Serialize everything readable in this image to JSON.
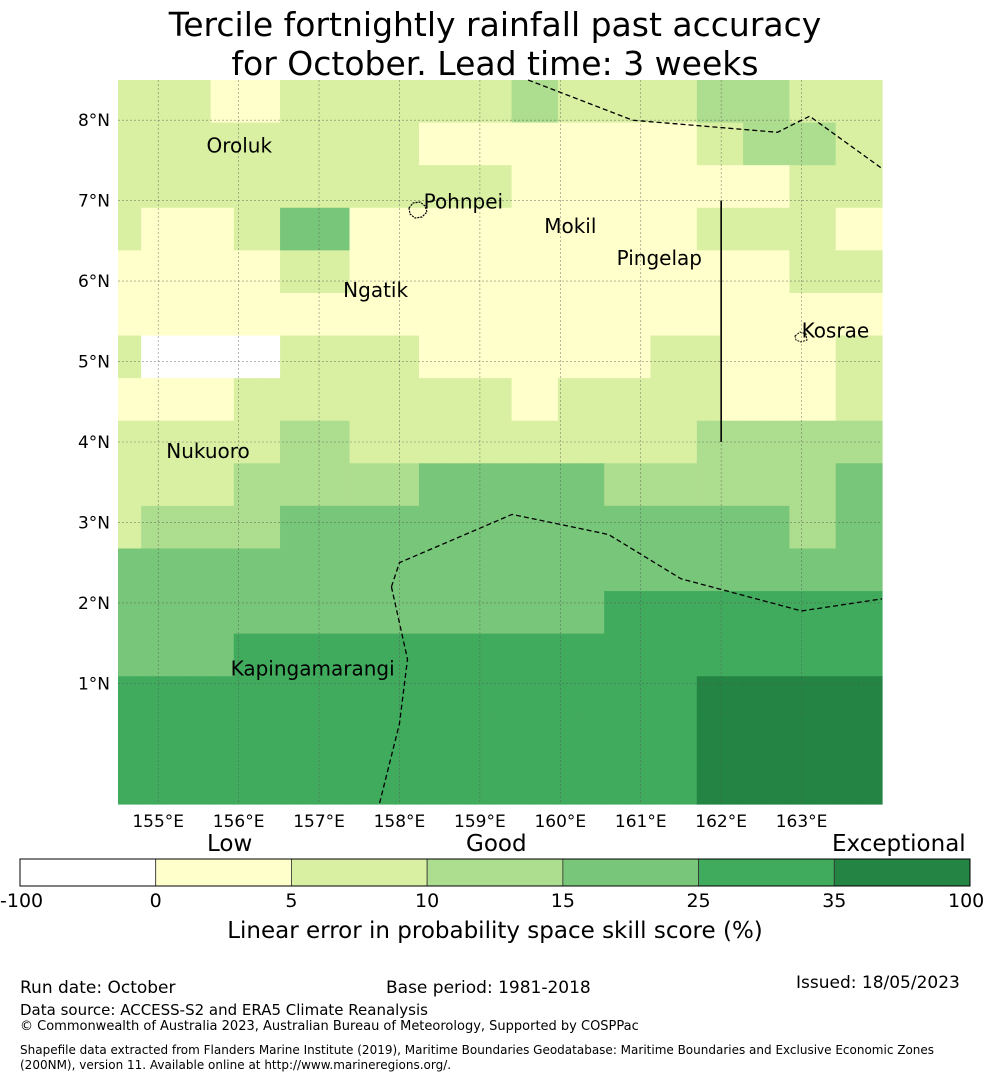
{
  "title": {
    "line1": "Tercile fortnightly rainfall past accuracy",
    "line2": "for October. Lead time: 3 weeks"
  },
  "map": {
    "lon_range": [
      154.5,
      164.0
    ],
    "lat_range": [
      -0.5,
      8.5
    ],
    "lon_ticks": [
      155,
      156,
      157,
      158,
      159,
      160,
      161,
      162,
      163
    ],
    "lon_tick_labels": [
      "155°E",
      "156°E",
      "157°E",
      "158°E",
      "159°E",
      "160°E",
      "161°E",
      "162°E",
      "163°E"
    ],
    "lat_ticks": [
      1,
      2,
      3,
      4,
      5,
      6,
      7,
      8
    ],
    "lat_tick_labels": [
      "1°N",
      "2°N",
      "3°N",
      "4°N",
      "5°N",
      "6°N",
      "7°N",
      "8°N"
    ],
    "cell_size_deg": [
      0.833,
      0.556
    ],
    "skill_grid_rows_north_to_south": [
      [
        5,
        5,
        5,
        5,
        0,
        0,
        0,
        5,
        5,
        5,
        5,
        5,
        5,
        5,
        5,
        5,
        5,
        10,
        10,
        5,
        5,
        5,
        5,
        5,
        5,
        10,
        10,
        10,
        10,
        5,
        5,
        5,
        5
      ],
      [
        5,
        5,
        5,
        5,
        5,
        5,
        5,
        5,
        5,
        5,
        5,
        5,
        5,
        0,
        0,
        0,
        0,
        0,
        0,
        0,
        0,
        0,
        0,
        0,
        0,
        5,
        5,
        10,
        10,
        10,
        10,
        5,
        5
      ],
      [
        5,
        5,
        5,
        5,
        5,
        5,
        5,
        5,
        5,
        5,
        5,
        5,
        5,
        5,
        5,
        5,
        5,
        0,
        0,
        0,
        0,
        0,
        0,
        0,
        0,
        0,
        0,
        0,
        0,
        5,
        5,
        5,
        5
      ],
      [
        5,
        0,
        0,
        0,
        0,
        5,
        5,
        15,
        15,
        15,
        0,
        0,
        0,
        0,
        0,
        0,
        0,
        0,
        0,
        0,
        0,
        0,
        0,
        0,
        0,
        5,
        5,
        5,
        5,
        5,
        5,
        0,
        0
      ],
      [
        0,
        0,
        0,
        0,
        0,
        0,
        0,
        5,
        5,
        5,
        0,
        0,
        0,
        0,
        0,
        0,
        0,
        0,
        0,
        0,
        0,
        0,
        0,
        0,
        0,
        0,
        0,
        0,
        0,
        5,
        5,
        5,
        5
      ],
      [
        0,
        0,
        0,
        0,
        0,
        0,
        0,
        0,
        0,
        0,
        0,
        0,
        0,
        0,
        0,
        0,
        0,
        0,
        0,
        0,
        0,
        0,
        0,
        0,
        0,
        0,
        0,
        0,
        0,
        0,
        0,
        0,
        0
      ],
      [
        5,
        -100,
        -100,
        -100,
        -100,
        -100,
        -100,
        5,
        5,
        5,
        5,
        5,
        5,
        0,
        0,
        0,
        0,
        0,
        0,
        0,
        0,
        0,
        0,
        5,
        5,
        5,
        0,
        0,
        0,
        0,
        0,
        5,
        5
      ],
      [
        0,
        0,
        0,
        0,
        0,
        5,
        5,
        5,
        5,
        5,
        5,
        5,
        5,
        5,
        5,
        5,
        5,
        0,
        0,
        5,
        5,
        5,
        5,
        5,
        5,
        5,
        0,
        0,
        0,
        0,
        0,
        5,
        5
      ],
      [
        5,
        5,
        5,
        5,
        5,
        5,
        5,
        10,
        10,
        10,
        5,
        5,
        5,
        5,
        5,
        5,
        5,
        5,
        5,
        5,
        5,
        5,
        5,
        5,
        5,
        10,
        10,
        10,
        10,
        10,
        10,
        10,
        10
      ],
      [
        5,
        5,
        5,
        5,
        5,
        10,
        10,
        10,
        10,
        10,
        10,
        10,
        10,
        15,
        15,
        15,
        15,
        15,
        15,
        15,
        15,
        10,
        10,
        10,
        10,
        10,
        10,
        10,
        10,
        10,
        10,
        15,
        15
      ],
      [
        5,
        10,
        10,
        10,
        10,
        10,
        10,
        15,
        15,
        15,
        15,
        15,
        15,
        15,
        15,
        15,
        15,
        15,
        15,
        15,
        15,
        15,
        15,
        15,
        15,
        15,
        15,
        15,
        15,
        10,
        10,
        15,
        15
      ],
      [
        15,
        15,
        15,
        15,
        15,
        15,
        15,
        15,
        15,
        15,
        15,
        15,
        15,
        15,
        15,
        15,
        15,
        15,
        15,
        15,
        15,
        15,
        15,
        15,
        15,
        15,
        15,
        15,
        15,
        15,
        15,
        15,
        15
      ],
      [
        15,
        15,
        15,
        15,
        15,
        15,
        15,
        15,
        15,
        15,
        15,
        15,
        15,
        15,
        15,
        15,
        15,
        15,
        15,
        15,
        15,
        25,
        25,
        25,
        25,
        25,
        25,
        25,
        25,
        25,
        25,
        25,
        25
      ],
      [
        15,
        15,
        15,
        15,
        15,
        25,
        25,
        25,
        25,
        25,
        25,
        25,
        25,
        25,
        25,
        25,
        25,
        25,
        25,
        25,
        25,
        25,
        25,
        25,
        25,
        25,
        25,
        25,
        25,
        25,
        25,
        25,
        25
      ],
      [
        25,
        25,
        25,
        25,
        25,
        25,
        25,
        25,
        25,
        25,
        25,
        25,
        25,
        25,
        25,
        25,
        25,
        25,
        25,
        25,
        25,
        25,
        25,
        25,
        25,
        35,
        35,
        35,
        35,
        35,
        35,
        35,
        35
      ],
      [
        25,
        25,
        25,
        25,
        25,
        25,
        25,
        25,
        25,
        25,
        25,
        25,
        25,
        25,
        25,
        25,
        25,
        25,
        25,
        25,
        25,
        25,
        25,
        25,
        25,
        35,
        35,
        35,
        35,
        35,
        35,
        35,
        35
      ],
      [
        25,
        25,
        25,
        25,
        25,
        25,
        25,
        25,
        25,
        25,
        25,
        25,
        25,
        25,
        25,
        25,
        25,
        25,
        25,
        25,
        25,
        25,
        25,
        25,
        25,
        35,
        35,
        35,
        35,
        35,
        35,
        35,
        35
      ]
    ],
    "places": [
      {
        "name": "Oroluk",
        "lon": 155.6,
        "lat": 7.6
      },
      {
        "name": "Pohnpei",
        "lon": 158.3,
        "lat": 6.9
      },
      {
        "name": "Mokil",
        "lon": 159.8,
        "lat": 6.6
      },
      {
        "name": "Pingelap",
        "lon": 160.7,
        "lat": 6.2
      },
      {
        "name": "Ngatik",
        "lon": 157.3,
        "lat": 5.8
      },
      {
        "name": "Kosrae",
        "lon": 163.0,
        "lat": 5.3
      },
      {
        "name": "Nukuoro",
        "lon": 155.1,
        "lat": 3.8
      },
      {
        "name": "Kapingamarangi",
        "lon": 155.9,
        "lat": 1.1
      }
    ],
    "eez_boundaries": [
      [
        [
          159.6,
          8.5
        ],
        [
          160.9,
          8.0
        ],
        [
          162.7,
          7.85
        ],
        [
          163.1,
          8.05
        ],
        [
          164.0,
          7.4
        ]
      ],
      [
        [
          157.9,
          2.2
        ],
        [
          158.0,
          2.5
        ],
        [
          159.4,
          3.1
        ],
        [
          160.6,
          2.85
        ],
        [
          161.5,
          2.3
        ],
        [
          163.0,
          1.9
        ],
        [
          164.0,
          2.05
        ]
      ],
      [
        [
          157.9,
          2.2
        ],
        [
          158.1,
          1.3
        ],
        [
          158.0,
          0.5
        ],
        [
          157.75,
          -0.5
        ]
      ]
    ],
    "marine_divider": {
      "lon": 162.0,
      "lat_range": [
        4.0,
        7.0
      ]
    }
  },
  "colorbar": {
    "boundaries": [
      -100,
      0,
      5,
      10,
      15,
      25,
      35,
      100
    ],
    "tick_labels": [
      "-100",
      "0",
      "5",
      "10",
      "15",
      "25",
      "35",
      "100"
    ],
    "colors": [
      "#ffffff",
      "#ffffcc",
      "#d9f0a3",
      "#addd8e",
      "#78c679",
      "#41ab5d",
      "#238443"
    ],
    "categories": {
      "low": "Low",
      "good": "Good",
      "exceptional": "Exceptional"
    },
    "label": "Linear error in probability space skill score (%)"
  },
  "footer": {
    "run_date": "Run date: October",
    "base_period": "Base period: 1981-2018",
    "issued": "Issued: 18/05/2023",
    "data_source": "Data source: ACCESS-S2 and ERA5 Climate Reanalysis",
    "copyright": "© Commonwealth of Australia 2023, Australian Bureau of Meteorology, Supported by COSPPac",
    "shapefile_note": "Shapefile data extracted from Flanders Marine Institute (2019), Maritime Boundaries Geodatabase: Maritime Boundaries and Exclusive Economic Zones (200NM), version 11. Available online at http://www.marineregions.org/."
  }
}
